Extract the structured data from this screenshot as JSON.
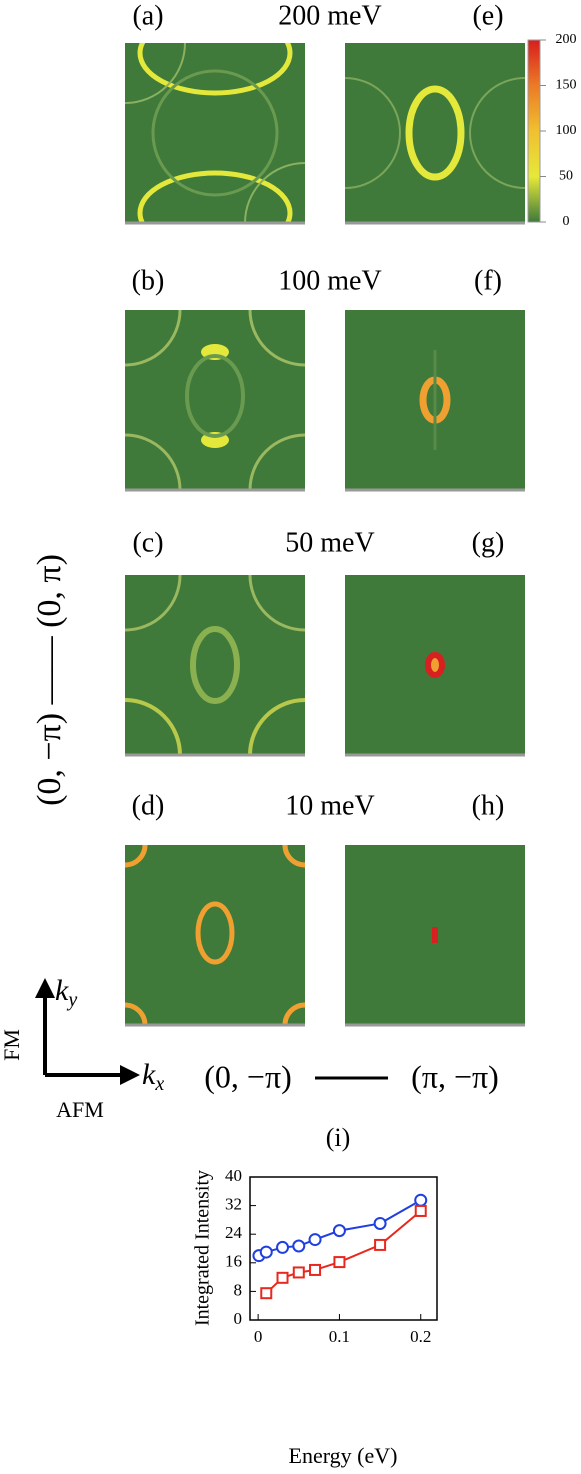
{
  "heatmaps": {
    "rows": [
      {
        "left": "(a)",
        "energy": "200 meV",
        "right": "(e)"
      },
      {
        "left": "(b)",
        "energy": "100 meV",
        "right": "(f)"
      },
      {
        "left": "(c)",
        "energy": "50 meV",
        "right": "(g)"
      },
      {
        "left": "(d)",
        "energy": "10 meV",
        "right": "(h)"
      }
    ],
    "colorbar": {
      "lim": [
        0,
        200
      ],
      "ticks": [
        0,
        50,
        100,
        150,
        200
      ]
    },
    "axes": {
      "vertical": "(0, −π) —— (0, π)",
      "ky": {
        "base": "k",
        "sub": "y"
      },
      "kx": {
        "base": "k",
        "sub": "x"
      },
      "fm": "FM",
      "afm": "AFM",
      "horizontal_from": "(0, −π)",
      "horizontal_to": "(π, −π)"
    }
  },
  "chart_data": {
    "type": "line",
    "title": "(i)",
    "x_label": "Energy (eV)",
    "y_label": "Integrated Intensity",
    "xlim": [
      -0.01,
      0.22
    ],
    "xticks": [
      0,
      0.1,
      0.2
    ],
    "ylim": [
      0,
      40
    ],
    "yticks": [
      0,
      8,
      16,
      24,
      32,
      40
    ],
    "series": [
      {
        "color": "#1f3fe0",
        "marker": "circle",
        "x": [
          0.001,
          0.01,
          0.03,
          0.05,
          0.07,
          0.1,
          0.15,
          0.2
        ],
        "values": [
          18,
          19,
          20.3,
          20.7,
          22.5,
          25,
          27,
          33.5
        ]
      },
      {
        "color": "#e8281e",
        "marker": "square",
        "x": [
          0.01,
          0.03,
          0.05,
          0.07,
          0.1,
          0.15,
          0.2
        ],
        "values": [
          7.5,
          11.8,
          13.3,
          14,
          16.2,
          21,
          30.5
        ]
      }
    ]
  }
}
